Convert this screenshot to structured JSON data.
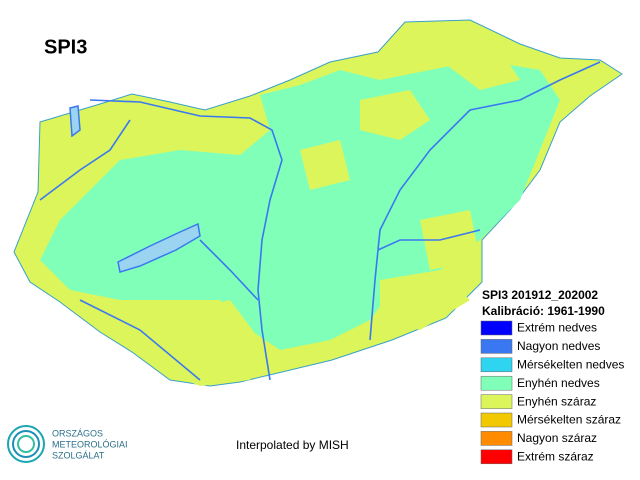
{
  "title": "SPI3",
  "legend": {
    "title": "SPI3 201912_202002",
    "subtitle": "Kalibráció: 1961-1990",
    "items": [
      {
        "name": "Extrém nedves",
        "color": "#0000ff"
      },
      {
        "name": "Nagyon nedves",
        "color": "#3a78f2"
      },
      {
        "name": "Mérsékelten nedves",
        "color": "#2ed4f0"
      },
      {
        "name": "Enyhén nedves",
        "color": "#80ffb8"
      },
      {
        "name": "Enyhén száraz",
        "color": "#dcf55a"
      },
      {
        "name": "Mérsékelten száraz",
        "color": "#f2c800"
      },
      {
        "name": "Nagyon száraz",
        "color": "#ff8c00"
      },
      {
        "name": "Extrém száraz",
        "color": "#ff0000"
      }
    ]
  },
  "credit": "Interpolated by MISH",
  "logo": {
    "lines": [
      "ORSZÁGOS",
      "METEOROLÓGIAI",
      "SZOLGÁLAT"
    ]
  }
}
